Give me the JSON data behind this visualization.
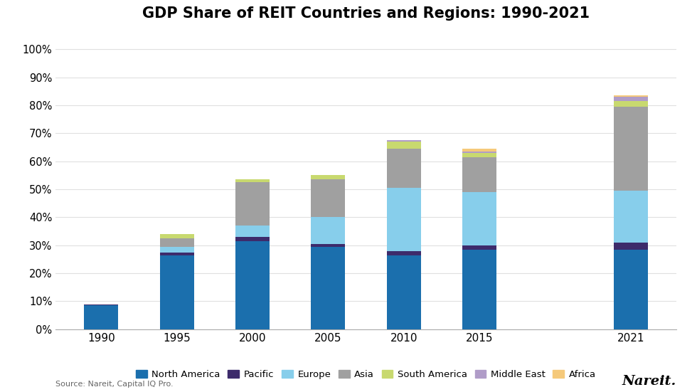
{
  "title": "GDP Share of REIT Countries and Regions: 1990-2021",
  "years": [
    1990,
    1995,
    2000,
    2005,
    2010,
    2015,
    2021
  ],
  "regions": [
    "North America",
    "Pacific",
    "Europe",
    "Asia",
    "South America",
    "Middle East",
    "Africa"
  ],
  "colors": [
    "#1B6FAD",
    "#3D2B6B",
    "#87CEEB",
    "#A0A0A0",
    "#C8D96F",
    "#B09CC8",
    "#F5C97A"
  ],
  "data": {
    "North America": [
      8.5,
      26.5,
      31.5,
      29.5,
      26.5,
      28.5,
      28.5
    ],
    "Pacific": [
      0.3,
      1.0,
      1.5,
      1.0,
      1.5,
      1.5,
      2.5
    ],
    "Europe": [
      0.0,
      2.0,
      4.0,
      9.5,
      22.5,
      19.0,
      18.5
    ],
    "Asia": [
      0.0,
      3.0,
      15.5,
      13.5,
      14.0,
      12.5,
      30.0
    ],
    "South America": [
      0.0,
      1.5,
      1.0,
      1.5,
      2.5,
      1.5,
      2.0
    ],
    "Middle East": [
      0.0,
      0.0,
      0.0,
      0.0,
      0.5,
      0.5,
      1.5
    ],
    "Africa": [
      0.0,
      0.0,
      0.0,
      0.0,
      0.0,
      1.0,
      0.5
    ]
  },
  "ylim": [
    0,
    105
  ],
  "yticks": [
    0,
    10,
    20,
    30,
    40,
    50,
    60,
    70,
    80,
    90,
    100
  ],
  "ytick_labels": [
    "0%",
    "10%",
    "20%",
    "30%",
    "40%",
    "50%",
    "60%",
    "70%",
    "80%",
    "90%",
    "100%"
  ],
  "source_text": "Source: Nareit, Capital IQ Pro.",
  "nareit_text": "Nareit.",
  "background_color": "#FFFFFF",
  "bar_width": 0.45,
  "figsize": [
    9.8,
    5.51
  ],
  "dpi": 100
}
